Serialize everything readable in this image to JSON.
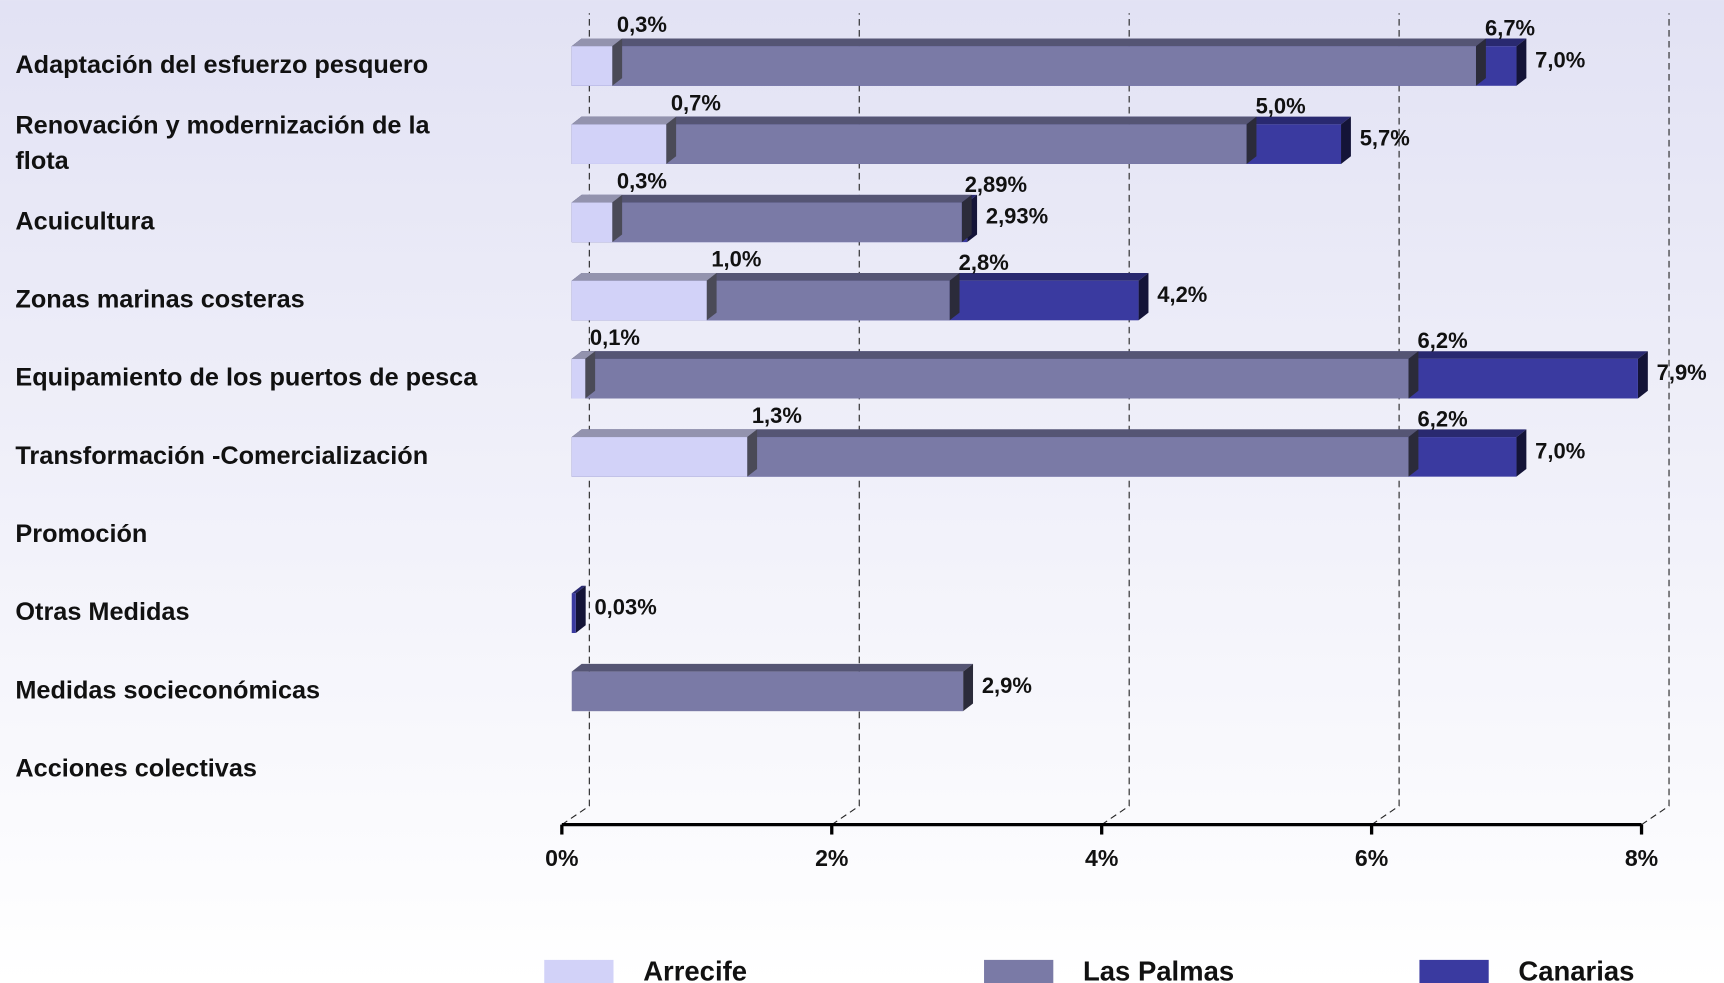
{
  "chart_data": {
    "type": "bar",
    "orientation": "horizontal",
    "overlap": true,
    "categories": [
      "Adaptación del esfuerzo pesquero",
      "Renovación y modernización de la flota",
      "Acuicultura",
      "Zonas marinas costeras",
      "Equipamiento de los puertos de pesca",
      "Transformación -Comercialización",
      "Promoción",
      "Otras Medidas",
      "Medidas socieconómicas",
      "Acciones colectivas"
    ],
    "series": [
      {
        "name": "Arrecife",
        "color": "#d2d2f8",
        "values": [
          0.3,
          0.7,
          0.3,
          1.0,
          0.1,
          1.3,
          null,
          null,
          null,
          null
        ],
        "value_labels": [
          "0,3%",
          "0,7%",
          "0,3%",
          "1,0%",
          "0,1%",
          "1,3%",
          null,
          null,
          null,
          null
        ]
      },
      {
        "name": "Las Palmas",
        "color": "#7a7aa6",
        "values": [
          6.7,
          5.0,
          2.89,
          2.8,
          6.2,
          6.2,
          null,
          null,
          2.9,
          null
        ],
        "value_labels": [
          "6,7%",
          "5,0%",
          "2,89%",
          "2,8%",
          "6,2%",
          "6,2%",
          null,
          null,
          "2,9%",
          null
        ]
      },
      {
        "name": "Canarias",
        "color": "#3a3aa0",
        "values": [
          7.0,
          5.7,
          2.93,
          4.2,
          7.9,
          7.0,
          null,
          0.03,
          null,
          null
        ],
        "value_labels": [
          "7,0%",
          "5,7%",
          "2,93%",
          "4,2%",
          "7,9%",
          "7,0%",
          null,
          "0,03%",
          null,
          null
        ]
      }
    ],
    "xlim": [
      0,
      8
    ],
    "xticks": [
      {
        "value": 0,
        "label": "0%"
      },
      {
        "value": 2,
        "label": "2%"
      },
      {
        "value": 4,
        "label": "4%"
      },
      {
        "value": 6,
        "label": "6%"
      },
      {
        "value": 8,
        "label": "8%"
      }
    ],
    "grid": true,
    "legend": "bottom"
  }
}
